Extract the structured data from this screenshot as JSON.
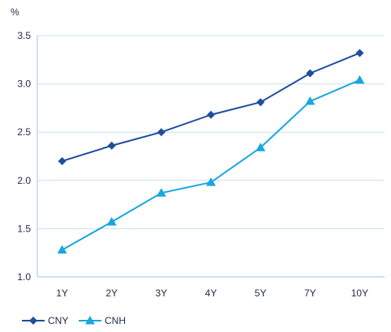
{
  "chart_data": {
    "type": "line",
    "title": "",
    "xlabel": "",
    "ylabel": "%",
    "ylim": [
      1.0,
      3.5
    ],
    "yticks": [
      "1.0",
      "1.5",
      "2.0",
      "2.5",
      "3.0",
      "3.5"
    ],
    "ytick_values": [
      1.0,
      1.5,
      2.0,
      2.5,
      3.0,
      3.5
    ],
    "categories": [
      "1Y",
      "2Y",
      "3Y",
      "4Y",
      "5Y",
      "7Y",
      "10Y"
    ],
    "grid": "horizontal",
    "legend": "bottom-left",
    "series": [
      {
        "name": "CNY",
        "marker": "diamond",
        "color": "#1f4e9c",
        "values": [
          2.2,
          2.36,
          2.5,
          2.68,
          2.81,
          3.11,
          3.32
        ]
      },
      {
        "name": "CNH",
        "marker": "triangle",
        "color": "#18a6de",
        "values": [
          1.28,
          1.57,
          1.87,
          1.98,
          2.34,
          2.82,
          3.04
        ]
      }
    ]
  }
}
